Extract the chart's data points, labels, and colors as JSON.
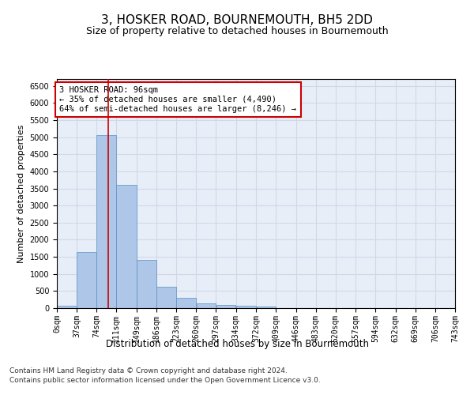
{
  "title": "3, HOSKER ROAD, BOURNEMOUTH, BH5 2DD",
  "subtitle": "Size of property relative to detached houses in Bournemouth",
  "xlabel": "Distribution of detached houses by size in Bournemouth",
  "ylabel": "Number of detached properties",
  "footnote1": "Contains HM Land Registry data © Crown copyright and database right 2024.",
  "footnote2": "Contains public sector information licensed under the Open Government Licence v3.0.",
  "bar_left_edges": [
    0,
    37,
    74,
    111,
    149,
    186,
    223,
    260,
    297,
    334,
    372,
    409,
    446,
    483,
    520,
    557,
    594,
    632,
    669,
    706
  ],
  "bar_widths": [
    37,
    37,
    37,
    38,
    37,
    37,
    37,
    37,
    37,
    38,
    37,
    37,
    37,
    37,
    37,
    37,
    38,
    37,
    37,
    37
  ],
  "bar_heights": [
    80,
    1650,
    5060,
    3600,
    1400,
    620,
    300,
    150,
    100,
    70,
    50,
    0,
    0,
    0,
    0,
    0,
    0,
    0,
    0,
    0
  ],
  "bar_color": "#aec6e8",
  "bar_edgecolor": "#5a8fc4",
  "x_tick_labels": [
    "0sqm",
    "37sqm",
    "74sqm",
    "111sqm",
    "149sqm",
    "186sqm",
    "223sqm",
    "260sqm",
    "297sqm",
    "334sqm",
    "372sqm",
    "409sqm",
    "446sqm",
    "483sqm",
    "520sqm",
    "557sqm",
    "594sqm",
    "632sqm",
    "669sqm",
    "706sqm",
    "743sqm"
  ],
  "x_tick_positions": [
    0,
    37,
    74,
    111,
    149,
    186,
    223,
    260,
    297,
    334,
    372,
    409,
    446,
    483,
    520,
    557,
    594,
    632,
    669,
    706,
    743
  ],
  "ylim": [
    0,
    6700
  ],
  "xlim": [
    0,
    743
  ],
  "y_ticks": [
    0,
    500,
    1000,
    1500,
    2000,
    2500,
    3000,
    3500,
    4000,
    4500,
    5000,
    5500,
    6000,
    6500
  ],
  "property_size": 96,
  "redline_color": "#cc0000",
  "annotation_text": "3 HOSKER ROAD: 96sqm\n← 35% of detached houses are smaller (4,490)\n64% of semi-detached houses are larger (8,246) →",
  "annotation_box_color": "#cc0000",
  "annotation_box_facecolor": "white",
  "grid_color": "#d0d8e8",
  "background_color": "#e8eef8",
  "title_fontsize": 11,
  "subtitle_fontsize": 9,
  "xlabel_fontsize": 8.5,
  "ylabel_fontsize": 8,
  "tick_fontsize": 7,
  "annotation_fontsize": 7.5
}
